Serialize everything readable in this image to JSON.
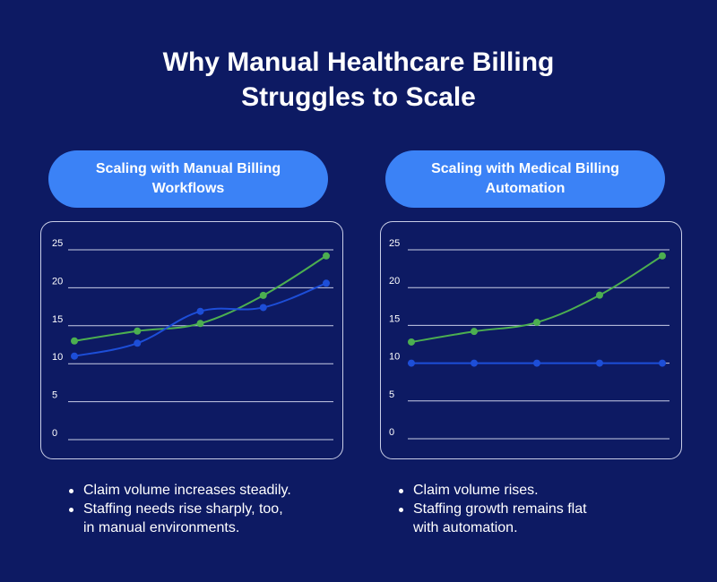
{
  "title": {
    "line1": "Why Manual Healthcare Billing",
    "line2": "Struggles to Scale"
  },
  "colors": {
    "background": "#0d1a63",
    "pill": "#3b82f6",
    "green_series": "#4caf50",
    "blue_series": "#1d4ed8",
    "grid": "#c8cde6"
  },
  "panels": [
    {
      "pill_line1": "Scaling with Manual Billing",
      "pill_line2": "Workflows",
      "bullets": [
        "Claim volume increases steadily.",
        "Staffing needs rise sharply, too,",
        "in manual environments."
      ]
    },
    {
      "pill_line1": "Scaling with Medical Billing",
      "pill_line2": "Automation",
      "bullets": [
        "Claim volume rises.",
        "Staffing growth remains flat",
        "with automation."
      ]
    }
  ],
  "chart_data": [
    {
      "type": "line",
      "x": [
        1,
        2,
        3,
        4,
        5
      ],
      "ylim": [
        0,
        25
      ],
      "yticks": [
        "0",
        "5",
        "10",
        "15",
        "20",
        "25"
      ],
      "series": [
        {
          "color": "#4caf50",
          "values": [
            13,
            14.3,
            15.3,
            19,
            24.2
          ]
        },
        {
          "color": "#1d4ed8",
          "values": [
            11,
            12.7,
            16.9,
            17.4,
            20.6
          ]
        }
      ]
    },
    {
      "type": "line",
      "x": [
        1,
        2,
        3,
        4,
        5
      ],
      "ylim": [
        0,
        25
      ],
      "yticks": [
        "0",
        "5",
        "10",
        "15",
        "20",
        "25"
      ],
      "series": [
        {
          "color": "#4caf50",
          "values": [
            12.8,
            14.2,
            15.4,
            19,
            24.2
          ]
        },
        {
          "color": "#1d4ed8",
          "values": [
            10,
            10,
            10,
            10,
            10
          ]
        }
      ]
    }
  ]
}
